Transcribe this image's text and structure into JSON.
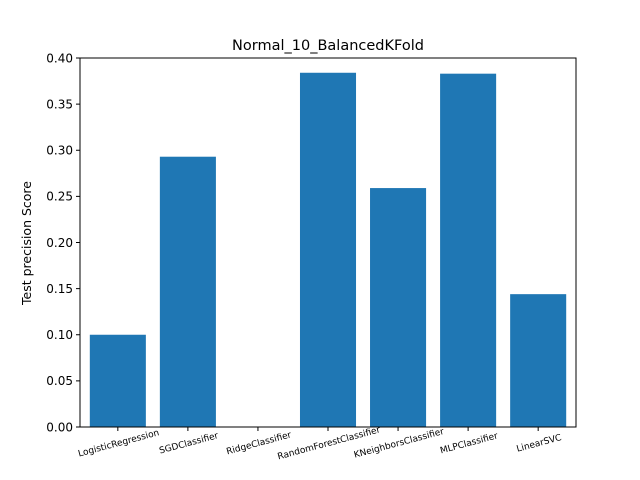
{
  "chart_data": {
    "type": "bar",
    "title": "Normal_10_BalancedKFold",
    "xlabel": "",
    "ylabel": "Test precision Score",
    "categories": [
      "LogisticRegression",
      "SGDClassifier",
      "RidgeClassifier",
      "RandomForestClassifier",
      "KNeighborsClassifier",
      "MLPClassifier",
      "LinearSVC"
    ],
    "values": [
      0.1,
      0.293,
      0.0,
      0.384,
      0.259,
      0.383,
      0.144
    ],
    "ylim": [
      0,
      0.4
    ],
    "yticks": [
      "0.00",
      "0.05",
      "0.10",
      "0.15",
      "0.20",
      "0.25",
      "0.30",
      "0.35",
      "0.40"
    ],
    "grid": false,
    "bar_color": "#1f77b4"
  }
}
